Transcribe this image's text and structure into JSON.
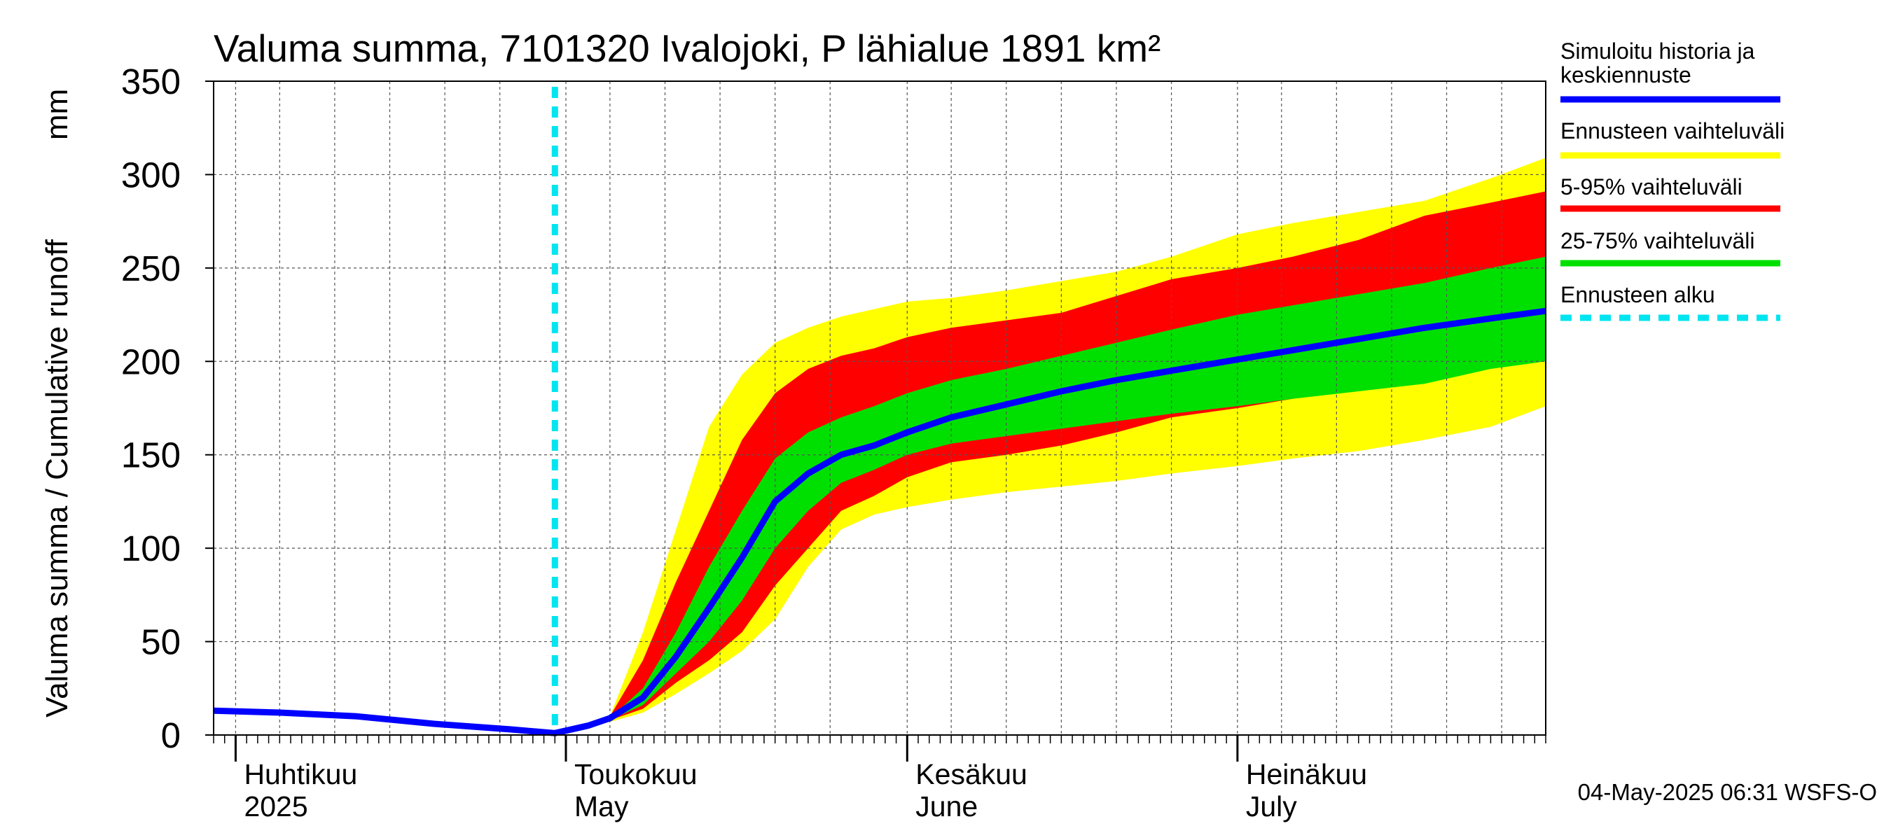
{
  "chart_data": {
    "type": "area",
    "title": "Valuma summa, 7101320 Ivalojoki, P lähialue 1891 km²",
    "ylabel_left": "Valuma summa / Cumulative runoff",
    "ylabel_unit": "mm",
    "ylim": [
      0,
      350
    ],
    "yticks": [
      0,
      50,
      100,
      150,
      200,
      250,
      300,
      350
    ],
    "x_start": "2025-03-30",
    "x_end": "2025-07-29",
    "grid": true,
    "month_labels": [
      {
        "date": "2025-04-01",
        "fi": "Huhtikuu",
        "en": "2025"
      },
      {
        "date": "2025-05-01",
        "fi": "Toukokuu",
        "en": "May"
      },
      {
        "date": "2025-06-01",
        "fi": "Kesäkuu",
        "en": "June"
      },
      {
        "date": "2025-07-01",
        "fi": "Heinäkuu",
        "en": "July"
      }
    ],
    "forecast_start": "2025-04-30",
    "legend": [
      {
        "label": "Simuloitu historia ja keskiennuste",
        "color": "#0000ff"
      },
      {
        "label": "Ennusteen vaihteluväli",
        "color": "#ffff00"
      },
      {
        "label": "5-95% vaihteluväli",
        "color": "#ff0000"
      },
      {
        "label": "25-75% vaihteluväli",
        "color": "#00e000"
      },
      {
        "label": "Ennusteen alku",
        "color": "#00e5f0"
      }
    ],
    "history": {
      "x": [
        "2025-03-30",
        "2025-04-05",
        "2025-04-12",
        "2025-04-19",
        "2025-04-26",
        "2025-04-30"
      ],
      "y": [
        13,
        12,
        10,
        6,
        3,
        1
      ]
    },
    "forecast_x": [
      "2025-04-30",
      "2025-05-03",
      "2025-05-05",
      "2025-05-08",
      "2025-05-11",
      "2025-05-14",
      "2025-05-17",
      "2025-05-20",
      "2025-05-23",
      "2025-05-26",
      "2025-05-29",
      "2025-06-01",
      "2025-06-05",
      "2025-06-10",
      "2025-06-15",
      "2025-06-20",
      "2025-06-25",
      "2025-07-01",
      "2025-07-06",
      "2025-07-12",
      "2025-07-18",
      "2025-07-24",
      "2025-07-29"
    ],
    "series": [
      {
        "name": "Simuloitu historia ja keskiennuste",
        "values": [
          1,
          5,
          9,
          20,
          42,
          68,
          95,
          125,
          140,
          150,
          155,
          162,
          170,
          177,
          184,
          190,
          195,
          201,
          206,
          212,
          218,
          223,
          227
        ]
      },
      {
        "name": "Ennusteen vaihteluväli",
        "upper": [
          1,
          5,
          10,
          55,
          110,
          165,
          193,
          210,
          218,
          224,
          228,
          232,
          234,
          238,
          243,
          248,
          256,
          268,
          274,
          280,
          286,
          298,
          309
        ],
        "lower": [
          1,
          4,
          7,
          12,
          22,
          33,
          45,
          62,
          90,
          110,
          118,
          122,
          126,
          130,
          133,
          136,
          140,
          144,
          148,
          152,
          158,
          165,
          176
        ]
      },
      {
        "name": "5-95% vaihteluväli",
        "upper": [
          1,
          5,
          10,
          40,
          82,
          120,
          158,
          183,
          196,
          203,
          207,
          213,
          218,
          222,
          226,
          235,
          244,
          250,
          256,
          265,
          278,
          285,
          291
        ],
        "lower": [
          1,
          4,
          8,
          14,
          28,
          40,
          55,
          80,
          100,
          120,
          128,
          138,
          146,
          150,
          155,
          162,
          170,
          175,
          180,
          186,
          192,
          198,
          205
        ]
      },
      {
        "name": "25-75% vaihteluväli",
        "upper": [
          1,
          5,
          9,
          25,
          55,
          90,
          120,
          148,
          162,
          170,
          176,
          183,
          190,
          196,
          203,
          210,
          217,
          225,
          230,
          236,
          242,
          250,
          256
        ],
        "lower": [
          1,
          4,
          8,
          16,
          33,
          50,
          72,
          100,
          120,
          135,
          142,
          150,
          156,
          160,
          164,
          168,
          172,
          176,
          180,
          184,
          188,
          196,
          200
        ]
      }
    ]
  },
  "footer": "04-May-2025 06:31 WSFS-O"
}
